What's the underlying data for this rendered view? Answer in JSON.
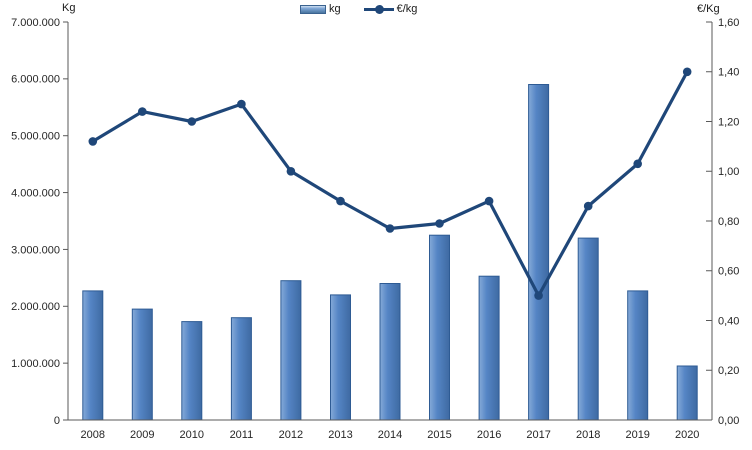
{
  "chart_data": {
    "type": "bar",
    "subtype": "combo-bar-line-dual-axis",
    "categories": [
      "2008",
      "2009",
      "2010",
      "2011",
      "2012",
      "2013",
      "2014",
      "2015",
      "2016",
      "2017",
      "2018",
      "2019",
      "2020"
    ],
    "series": [
      {
        "name": "kg",
        "type": "bar",
        "axis": "left",
        "values": [
          2270000,
          1950000,
          1730000,
          1800000,
          2450000,
          2200000,
          2400000,
          3250000,
          2530000,
          5900000,
          3200000,
          2270000,
          950000
        ]
      },
      {
        "name": "€/kg",
        "type": "line",
        "axis": "right",
        "values": [
          1.12,
          1.24,
          1.2,
          1.27,
          1.0,
          0.88,
          0.77,
          0.79,
          0.88,
          0.5,
          0.86,
          1.03,
          1.4
        ]
      }
    ],
    "left_axis": {
      "title": "Kg",
      "min": 0,
      "max": 7000000,
      "tick_step": 1000000,
      "tick_labels": [
        "7.000.000",
        "6.000.000",
        "5.000.000",
        "4.000.000",
        "3.000.000",
        "2.000.000",
        "1.000.000",
        "0"
      ]
    },
    "right_axis": {
      "title": "€/Kg",
      "min": 0,
      "max": 1.6,
      "tick_step": 0.2,
      "tick_labels": [
        "1,60",
        "1,40",
        "1,20",
        "1,00",
        "0,80",
        "0,60",
        "0,40",
        "0,20",
        "0,00"
      ]
    },
    "legend": {
      "position": "top-center",
      "entries": [
        "kg",
        "€/kg"
      ]
    },
    "grid": false,
    "title": "",
    "colors": {
      "bar_fill": "#5585c5",
      "bar_fill_light": "#85aad8",
      "bar_fill_dark": "#3e6aa2",
      "bar_border": "#2e5b94",
      "line": "#1f4779",
      "axis": "#595959",
      "text": "#262626"
    }
  }
}
